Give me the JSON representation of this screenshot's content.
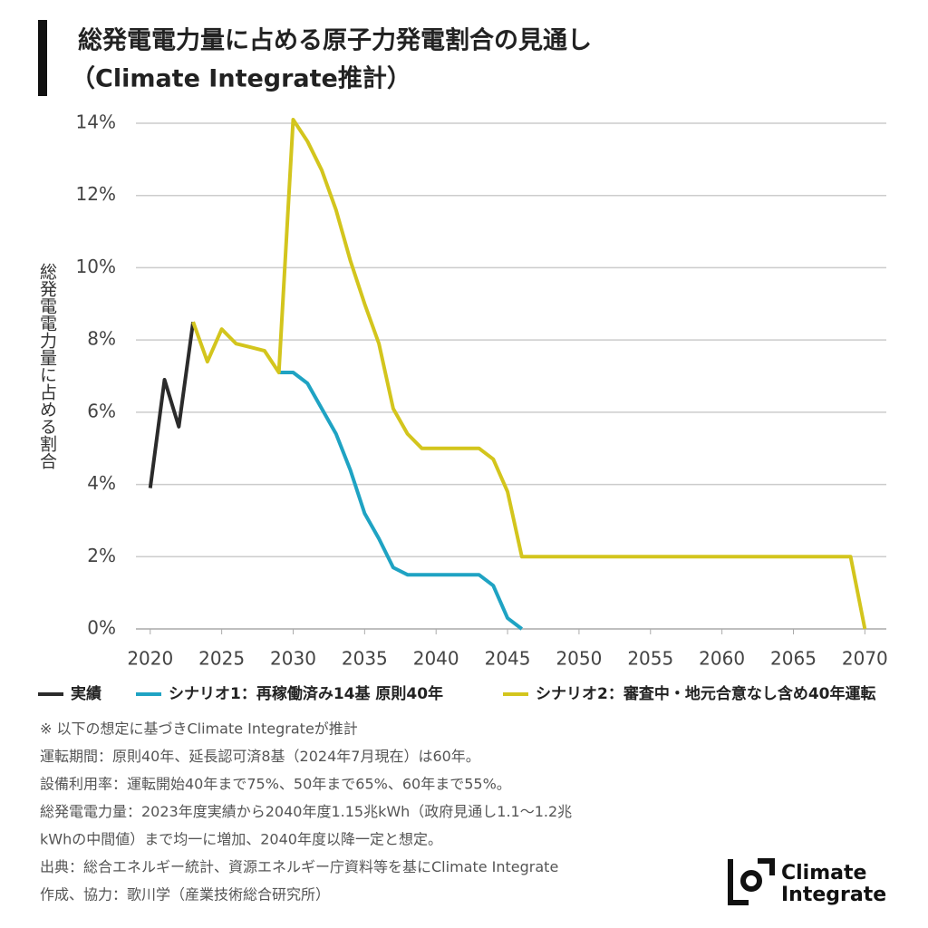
{
  "chart_data": {
    "type": "line",
    "title": "総発電電力量に占める原子力発電割合の見通し",
    "subtitle": "（Climate Integrate推計）",
    "y_label": "総発電電力量に占める割合",
    "xlim": [
      2019,
      2071.5
    ],
    "xticks": [
      2020,
      2025,
      2030,
      2035,
      2040,
      2045,
      2050,
      2055,
      2060,
      2065,
      2070
    ],
    "ylim": [
      0,
      14
    ],
    "yticks": [
      {
        "value": 0,
        "label": "0%"
      },
      {
        "value": 2,
        "label": "2%"
      },
      {
        "value": 4,
        "label": "4%"
      },
      {
        "value": 6,
        "label": "6%"
      },
      {
        "value": 8,
        "label": "8%"
      },
      {
        "value": 10,
        "label": "10%"
      },
      {
        "value": 12,
        "label": "12%"
      },
      {
        "value": 14,
        "label": "14%"
      }
    ],
    "grid": true,
    "series": [
      {
        "name": "実績",
        "color": "#2b2b2b",
        "x": [
          2020,
          2021,
          2022,
          2023
        ],
        "values": [
          3.9,
          6.9,
          5.6,
          8.5
        ]
      },
      {
        "name": "シナリオ1：再稼働済み14基 原則40年",
        "color": "#1fa3c3",
        "x": [
          2029,
          2030,
          2031,
          2032,
          2033,
          2034,
          2035,
          2036,
          2037,
          2038,
          2039,
          2040,
          2041,
          2042,
          2043,
          2044,
          2045,
          2046
        ],
        "values": [
          7.1,
          7.1,
          6.8,
          6.1,
          5.4,
          4.4,
          3.2,
          2.5,
          1.7,
          1.5,
          1.5,
          1.5,
          1.5,
          1.5,
          1.5,
          1.2,
          0.3,
          0
        ]
      },
      {
        "name": "シナリオ2：審査中・地元合意なし含め40年運転",
        "color": "#d3c51d",
        "x": [
          2023,
          2024,
          2025,
          2026,
          2027,
          2028,
          2029,
          2030,
          2031,
          2032,
          2033,
          2034,
          2035,
          2036,
          2037,
          2038,
          2039,
          2040,
          2041,
          2042,
          2043,
          2044,
          2045,
          2046,
          2069,
          2070
        ],
        "values": [
          8.5,
          7.4,
          8.3,
          7.9,
          7.8,
          7.7,
          7.1,
          14.1,
          13.5,
          12.7,
          11.6,
          10.2,
          9.0,
          7.9,
          6.1,
          5.4,
          5.0,
          5.0,
          5.0,
          5.0,
          5.0,
          4.7,
          3.8,
          2.0,
          2.0,
          0
        ]
      }
    ],
    "notes": [
      "※ 以下の想定に基づきClimate Integrateが推計",
      "運転期間：原則40年、延長認可済8基（2024年7月現在）は60年。",
      "設備利用率：運転開始40年まで75%、50年まで65%、60年まで55%。",
      "総発電電力量：2023年度実績から2040年度1.15兆kWh（政府見通し1.1〜1.2兆",
      "kWhの中間値）まで均一に増加、2040年度以降一定と想定。",
      "出典：総合エネルギー統計、資源エネルギー庁資料等を基にClimate Integrate",
      "作成、協力：歌川学（産業技術総合研究所）"
    ],
    "logo": [
      "Climate",
      "Integrate"
    ]
  }
}
